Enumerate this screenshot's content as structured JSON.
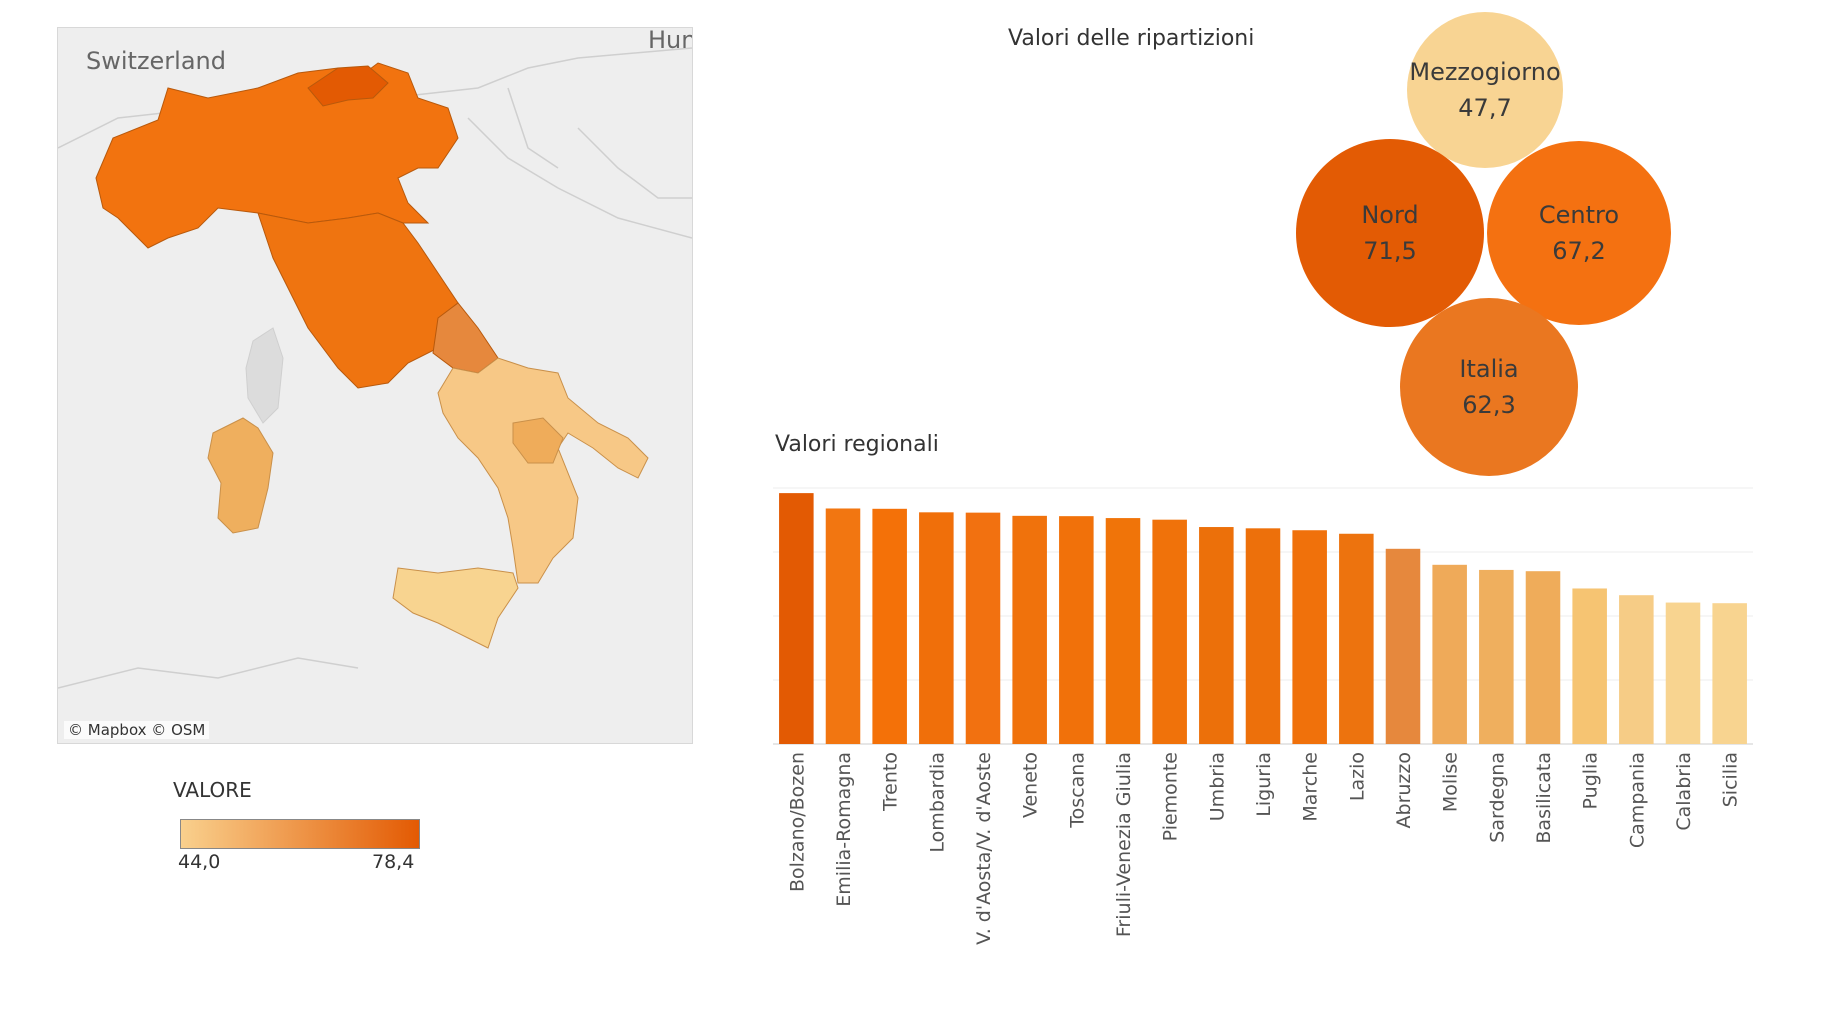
{
  "map": {
    "label_switzerland": "Switzerland",
    "label_hungary": "Hun",
    "attribution": "© Mapbox  © OSM"
  },
  "legend": {
    "title": "VALORE",
    "min": "44,0",
    "max": "78,4",
    "color_low": "#f9d08d",
    "color_high": "#e35a03"
  },
  "bubbles": {
    "title": "Valori delle ripartizioni",
    "items": [
      {
        "name": "Mezzogiorno",
        "value": "47,7",
        "color": "#f8d493"
      },
      {
        "name": "Nord",
        "value": "71,5",
        "color": "#e35b04"
      },
      {
        "name": "Centro",
        "value": "67,2",
        "color": "#f47111"
      },
      {
        "name": "Italia",
        "value": "62,3",
        "color": "#ea7720"
      }
    ]
  },
  "chart_data": {
    "type": "bar",
    "title": "Valori regionali",
    "categories": [
      "Bolzano/Bozen",
      "Emilia-Romagna",
      "Trento",
      "Lombardia",
      "V. d'Aosta/V. d'Aoste",
      "Veneto",
      "Toscana",
      "Friuli-Venezia Giulia",
      "Piemonte",
      "Umbria",
      "Liguria",
      "Marche",
      "Lazio",
      "Abruzzo",
      "Molise",
      "Sardegna",
      "Basilicata",
      "Puglia",
      "Campania",
      "Calabria",
      "Sicilia"
    ],
    "values": [
      78.4,
      73.6,
      73.5,
      72.4,
      72.3,
      71.3,
      71.2,
      70.6,
      70.1,
      67.8,
      67.4,
      66.8,
      65.7,
      61.0,
      56.0,
      54.4,
      54.0,
      48.6,
      46.5,
      44.2,
      44.0
    ],
    "colors": [
      "#e35a03",
      "#f27611",
      "#f47108",
      "#f06f0a",
      "#f27110",
      "#f0720c",
      "#f1710a",
      "#f07409",
      "#f0720a",
      "#ec700a",
      "#ed700b",
      "#f0710b",
      "#ed730e",
      "#e6883d",
      "#efaa59",
      "#efaf5e",
      "#efac5a",
      "#f6c472",
      "#f6cc86",
      "#f8d490",
      "#f8d490"
    ],
    "ylim": [
      0,
      80
    ],
    "grid": true
  }
}
